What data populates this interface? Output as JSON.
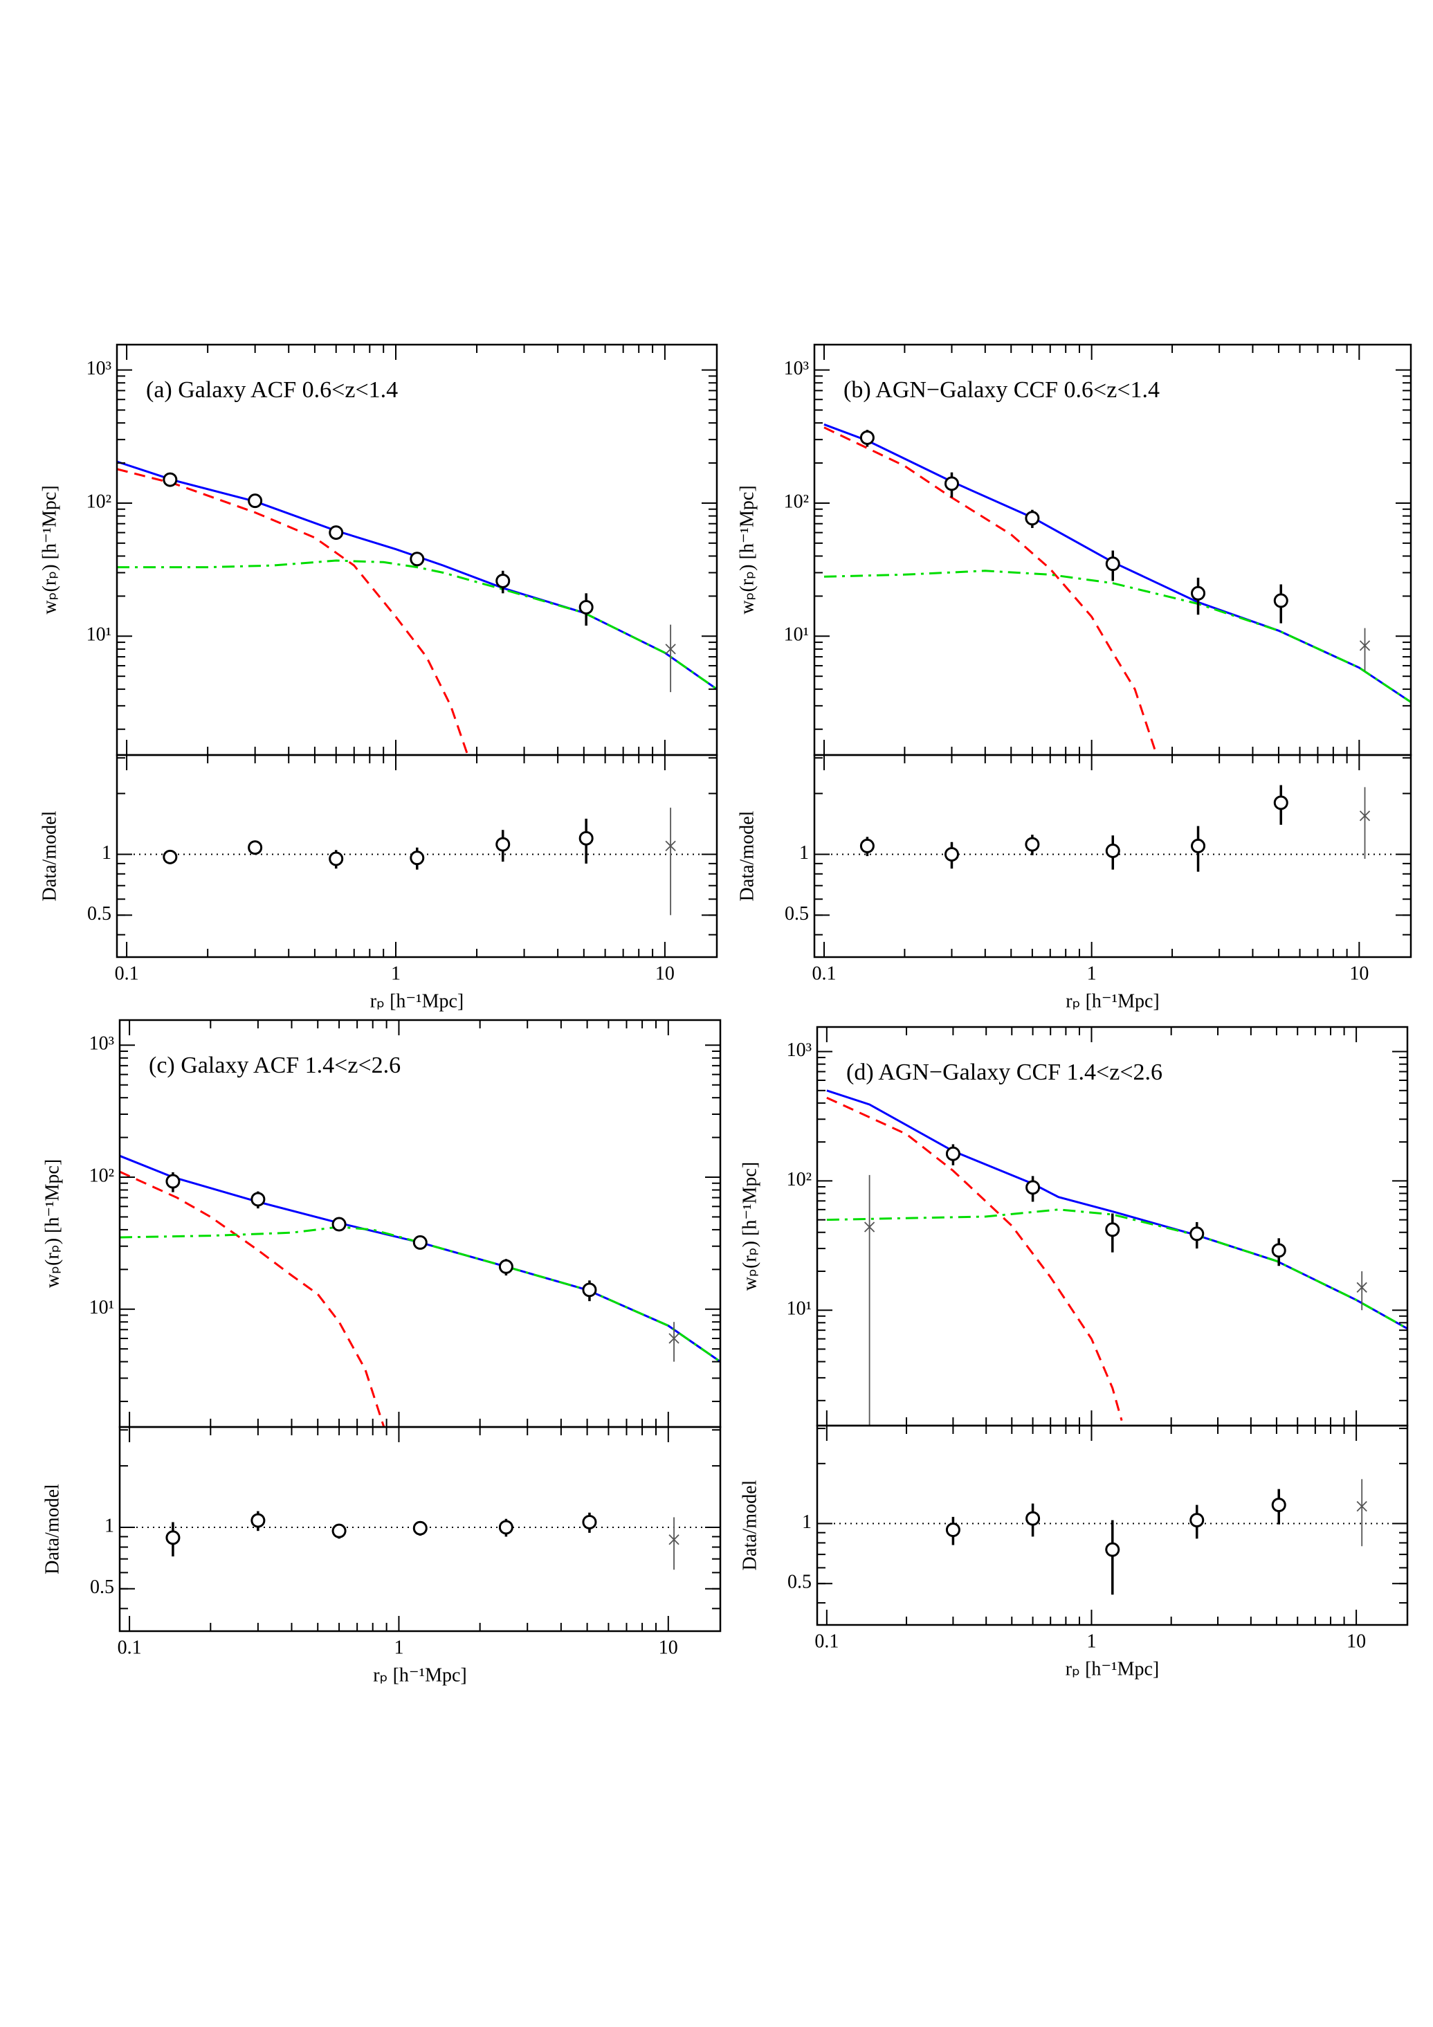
{
  "chart_data": [
    {
      "type": "errorbar",
      "title": "(a) Galaxy ACF 0.6<z<1.4",
      "xlabel": "rₚ [h⁻¹Mpc]",
      "ylabel": "wₚ(rₚ) [h⁻¹Mpc]",
      "ratio_ylabel": "Data/model",
      "xscale": "log",
      "yscale": "log",
      "xlim": [
        0.092,
        15.6
      ],
      "xticks": [
        0.1,
        1,
        10
      ],
      "ylim": [
        1.28,
        1550
      ],
      "yticks": [
        {
          "value": 10,
          "label": "10¹"
        },
        {
          "value": 100,
          "label": "10²"
        },
        {
          "value": 1000,
          "label": "10³"
        }
      ],
      "ratio_ylim": [
        0.31,
        3.1
      ],
      "ratio_yticks": [
        0.5,
        1
      ],
      "ratio_reference": 1,
      "points": [
        {
          "marker": "circle",
          "color": "#000000",
          "x": [
            0.145,
            0.3,
            0.6,
            1.2,
            2.5,
            5.1
          ],
          "values": [
            150,
            104,
            60,
            38,
            26,
            16.5
          ],
          "errors": [
            10,
            8,
            6,
            4,
            5,
            4.5
          ],
          "ratio": [
            0.97,
            1.08,
            0.95,
            0.96,
            1.12,
            1.2
          ],
          "ratio_errors": [
            0.06,
            0.07,
            0.1,
            0.12,
            0.2,
            0.3
          ]
        },
        {
          "marker": "cross",
          "color": "#555555",
          "x": [
            10.5
          ],
          "values": [
            8
          ],
          "errors": [
            4.2
          ],
          "ratio": [
            1.1
          ],
          "ratio_errors": [
            0.6
          ]
        }
      ],
      "models": [
        {
          "color": "#0000ff",
          "dash": "solid",
          "x": [
            0.092,
            0.15,
            0.3,
            0.6,
            1,
            1.5,
            2.5,
            5,
            10,
            15.6
          ],
          "values": [
            205,
            148,
            103,
            62,
            45,
            34,
            23,
            15,
            7.5,
            4.0
          ]
        },
        {
          "color": "#ff0000",
          "dash": "dashed",
          "x": [
            0.092,
            0.15,
            0.3,
            0.5,
            0.7,
            1,
            1.3,
            1.6,
            1.85
          ],
          "values": [
            180,
            140,
            85,
            55,
            34,
            14,
            7,
            3,
            1.28
          ]
        },
        {
          "color": "#00dd00",
          "dash": "dashdot",
          "x": [
            0.092,
            0.2,
            0.35,
            0.6,
            0.9,
            1.2,
            1.5,
            2.5,
            5,
            10,
            15.6
          ],
          "values": [
            33,
            33,
            34,
            37,
            36,
            33,
            30,
            22.5,
            15,
            7.5,
            4.0
          ]
        }
      ]
    },
    {
      "type": "errorbar",
      "title": "(b) AGN−Galaxy CCF 0.6<z<1.4",
      "xlabel": "rₚ [h⁻¹Mpc]",
      "ylabel": "wₚ(rₚ) [h⁻¹Mpc]",
      "ratio_ylabel": "Data/model",
      "xscale": "log",
      "yscale": "log",
      "xlim": [
        0.092,
        15.6
      ],
      "xticks": [
        0.1,
        1,
        10
      ],
      "ylim": [
        1.28,
        1550
      ],
      "yticks": [
        {
          "value": 10,
          "label": "10¹"
        },
        {
          "value": 100,
          "label": "10²"
        },
        {
          "value": 1000,
          "label": "10³"
        }
      ],
      "ratio_ylim": [
        0.31,
        3.1
      ],
      "ratio_yticks": [
        0.5,
        1
      ],
      "ratio_reference": 1,
      "points": [
        {
          "marker": "circle",
          "color": "#000000",
          "x": [
            0.145,
            0.3,
            0.6,
            1.2,
            2.5,
            5.1
          ],
          "values": [
            310,
            140,
            77,
            35,
            21,
            18.5
          ],
          "errors": [
            45,
            30,
            12,
            9,
            6.5,
            6
          ],
          "ratio": [
            1.1,
            1.0,
            1.12,
            1.04,
            1.1,
            1.8
          ],
          "ratio_errors": [
            0.12,
            0.15,
            0.13,
            0.2,
            0.28,
            0.4
          ]
        },
        {
          "marker": "cross",
          "color": "#555555",
          "x": [
            10.5
          ],
          "values": [
            8.5
          ],
          "errors": [
            3
          ],
          "ratio": [
            1.55
          ],
          "ratio_errors": [
            0.6
          ]
        }
      ],
      "models": [
        {
          "color": "#0000ff",
          "dash": "solid",
          "x": [
            0.1,
            0.145,
            0.3,
            0.6,
            1.2,
            2.5,
            5,
            10,
            15.6
          ],
          "values": [
            390,
            295,
            145,
            78,
            36,
            18,
            11,
            5.8,
            3.2
          ]
        },
        {
          "color": "#ff0000",
          "dash": "dashed",
          "x": [
            0.1,
            0.2,
            0.3,
            0.5,
            0.7,
            1,
            1.2,
            1.45,
            1.75
          ],
          "values": [
            370,
            190,
            110,
            58,
            32,
            14,
            7.5,
            4,
            1.28
          ]
        },
        {
          "color": "#00dd00",
          "dash": "dashdot",
          "x": [
            0.1,
            0.2,
            0.4,
            0.7,
            1.2,
            2.5,
            5,
            10,
            15.6
          ],
          "values": [
            28,
            29,
            31,
            29,
            25,
            17.5,
            11,
            5.8,
            3.2
          ]
        }
      ]
    },
    {
      "type": "errorbar",
      "title": "(c) Galaxy ACF 1.4<z<2.6",
      "xlabel": "rₚ [h⁻¹Mpc]",
      "ylabel": "wₚ(rₚ) [h⁻¹Mpc]",
      "ratio_ylabel": "Data/model",
      "xscale": "log",
      "yscale": "log",
      "xlim": [
        0.092,
        15.6
      ],
      "xticks": [
        0.1,
        1,
        10
      ],
      "ylim": [
        1.28,
        1550
      ],
      "yticks": [
        {
          "value": 10,
          "label": "10¹"
        },
        {
          "value": 100,
          "label": "10²"
        },
        {
          "value": 1000,
          "label": "10³"
        }
      ],
      "ratio_ylim": [
        0.31,
        3.1
      ],
      "ratio_yticks": [
        0.5,
        1
      ],
      "ratio_reference": 1,
      "points": [
        {
          "marker": "circle",
          "color": "#000000",
          "x": [
            0.145,
            0.3,
            0.6,
            1.2,
            2.5,
            5.1
          ],
          "values": [
            93,
            68,
            44,
            32,
            21,
            14
          ],
          "errors": [
            16,
            10,
            4,
            3,
            3,
            2.5
          ],
          "ratio": [
            0.89,
            1.08,
            0.96,
            0.99,
            1.0,
            1.06
          ],
          "ratio_errors": [
            0.17,
            0.12,
            0.08,
            0.08,
            0.1,
            0.12
          ]
        },
        {
          "marker": "cross",
          "color": "#555555",
          "x": [
            10.5
          ],
          "values": [
            6
          ],
          "errors": [
            2
          ],
          "ratio": [
            0.87
          ],
          "ratio_errors": [
            0.25
          ]
        }
      ],
      "models": [
        {
          "color": "#0000ff",
          "dash": "solid",
          "x": [
            0.092,
            0.145,
            0.3,
            0.6,
            1.2,
            2.5,
            5,
            10,
            15.6
          ],
          "values": [
            145,
            100,
            65,
            45,
            32,
            21,
            14,
            7.5,
            4.0
          ]
        },
        {
          "color": "#ff0000",
          "dash": "dashed",
          "x": [
            0.092,
            0.15,
            0.2,
            0.3,
            0.4,
            0.5,
            0.6,
            0.75,
            0.88
          ],
          "values": [
            110,
            70,
            50,
            28,
            18,
            13,
            8,
            3.5,
            1.28
          ]
        },
        {
          "color": "#00dd00",
          "dash": "dashdot",
          "x": [
            0.092,
            0.2,
            0.4,
            0.6,
            0.8,
            1.2,
            2.5,
            5,
            10,
            15.6
          ],
          "values": [
            35,
            36,
            38,
            42,
            40,
            32,
            21,
            14,
            7.5,
            4.0
          ]
        }
      ]
    },
    {
      "type": "errorbar",
      "title": "(d) AGN−Galaxy CCF 1.4<z<2.6",
      "xlabel": "rₚ [h⁻¹Mpc]",
      "ylabel": "wₚ(rₚ) [h⁻¹Mpc]",
      "ratio_ylabel": "Data/model",
      "xscale": "log",
      "yscale": "log",
      "xlim": [
        0.092,
        15.6
      ],
      "xticks": [
        0.1,
        1,
        10
      ],
      "ylim": [
        1.28,
        1550
      ],
      "yticks": [
        {
          "value": 10,
          "label": "10¹"
        },
        {
          "value": 100,
          "label": "10²"
        },
        {
          "value": 1000,
          "label": "10³"
        }
      ],
      "ratio_ylim": [
        0.31,
        3.1
      ],
      "ratio_yticks": [
        0.5,
        1
      ],
      "ratio_reference": 1,
      "points": [
        {
          "marker": "circle",
          "color": "#000000",
          "x": [
            0.3,
            0.6,
            1.2,
            2.5,
            5.1
          ],
          "values": [
            162,
            89,
            42,
            39,
            29
          ],
          "errors": [
            30,
            20,
            14,
            9,
            7
          ],
          "ratio": [
            0.93,
            1.06,
            0.74,
            1.04,
            1.24
          ],
          "ratio_errors": [
            0.15,
            0.2,
            0.3,
            0.2,
            0.25
          ]
        },
        {
          "marker": "cross",
          "color": "#555555",
          "x": [
            0.145,
            10.5
          ],
          "values": [
            44,
            15
          ],
          "errors": [
            67,
            5
          ],
          "ratio": [
            null,
            1.22
          ],
          "ratio_errors": [
            null,
            0.45
          ]
        }
      ],
      "models": [
        {
          "color": "#0000ff",
          "dash": "solid",
          "x": [
            0.1,
            0.145,
            0.3,
            0.6,
            0.75,
            1.2,
            2.5,
            5,
            10,
            15.6
          ],
          "values": [
            500,
            390,
            170,
            95,
            75,
            58,
            38,
            24,
            12,
            7.2
          ]
        },
        {
          "color": "#ff0000",
          "dash": "dashed",
          "x": [
            0.1,
            0.2,
            0.3,
            0.5,
            0.7,
            1,
            1.2,
            1.3
          ],
          "values": [
            440,
            230,
            120,
            45,
            18,
            6,
            2.5,
            1.4
          ]
        },
        {
          "color": "#00dd00",
          "dash": "dashdot",
          "x": [
            0.1,
            0.4,
            0.75,
            1.2,
            2.5,
            5,
            10,
            15.6
          ],
          "values": [
            50,
            53,
            60,
            55,
            38,
            24,
            12,
            7.2
          ]
        }
      ]
    }
  ]
}
